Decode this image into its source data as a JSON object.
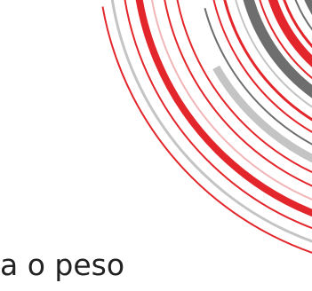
{
  "decoration": {
    "name": "concentric-arc-swirl",
    "colors": {
      "red": "#e3262b",
      "dark_gray": "#6e6e6e",
      "light_gray": "#c4c4c4",
      "pale_red": "#f1b6b7"
    }
  },
  "text_fragment": "a o peso"
}
